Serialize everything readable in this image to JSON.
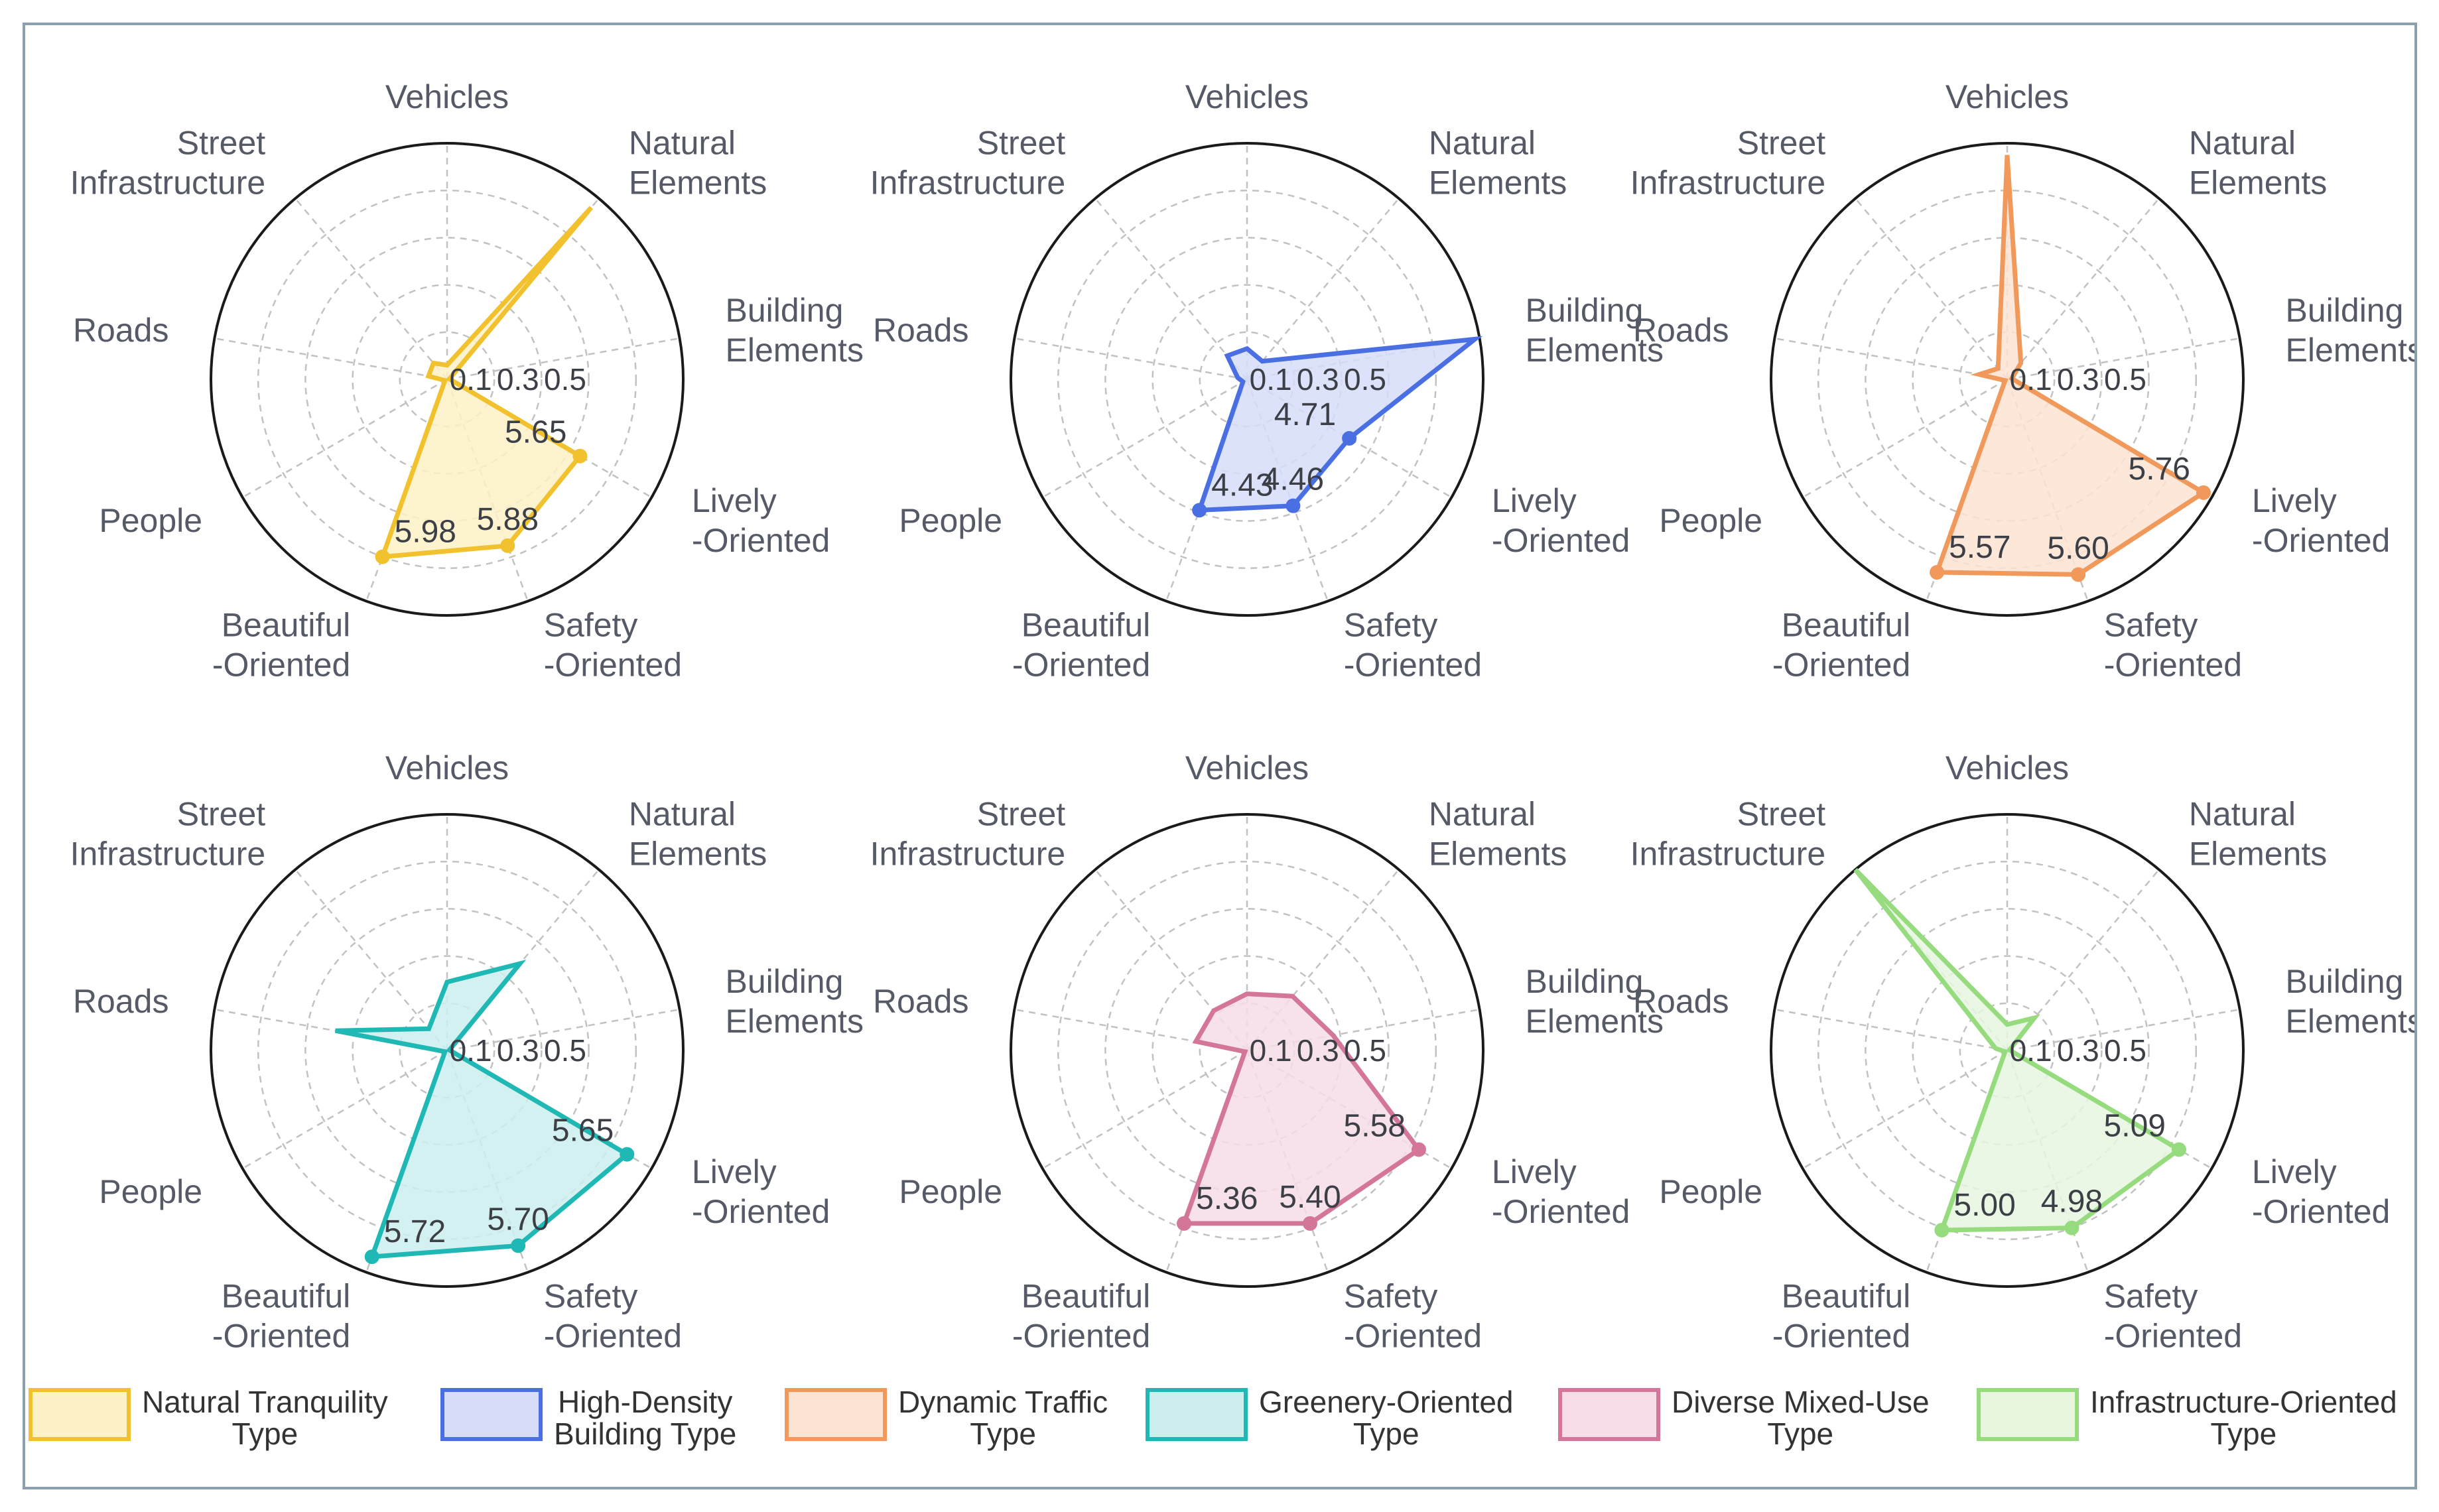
{
  "chart_data": {
    "type": "radar",
    "axes": [
      "Vehicles",
      "Natural Elements",
      "Building Elements",
      "Lively -Oriented",
      "Safety -Oriented",
      "Beautiful -Oriented",
      "People",
      "Roads",
      "Street Infrastructure"
    ],
    "axis_label_lines": [
      [
        "Vehicles"
      ],
      [
        "Natural",
        "Elements"
      ],
      [
        "Building",
        "Elements"
      ],
      [
        "Lively",
        "-Oriented"
      ],
      [
        "Safety",
        "-Oriented"
      ],
      [
        "Beautiful",
        "-Oriented"
      ],
      [
        "People"
      ],
      [
        "Roads"
      ],
      [
        "Street",
        "Infrastructure"
      ]
    ],
    "radial_tick_labels": [
      "0.1",
      "0.3",
      "0.5"
    ],
    "rings": 5,
    "grid": true,
    "legend_position": "bottom",
    "charts": [
      {
        "name": "Natural Tranquility Type",
        "legend_lines": [
          "Natural Tranquility",
          "Type"
        ],
        "color": "#f2c12e",
        "fill": "#fdf1c7",
        "values": [
          0.06,
          0.95,
          0.01,
          0.65,
          0.75,
          0.8,
          0.01,
          0.08,
          0.09
        ],
        "value_labels": [
          "",
          "",
          "",
          "5.65",
          "5.88",
          "5.98",
          "",
          "",
          ""
        ]
      },
      {
        "name": "High-Density Building Type",
        "legend_lines": [
          "High-Density",
          "Building Type"
        ],
        "color": "#4a6fe3",
        "fill": "#d5ddf8",
        "values": [
          0.13,
          0.1,
          0.98,
          0.5,
          0.57,
          0.59,
          0.02,
          0.04,
          0.13
        ],
        "value_labels": [
          "",
          "",
          "",
          "4.71",
          "4.46",
          "4.43",
          "",
          "",
          ""
        ]
      },
      {
        "name": "Dynamic Traffic Type",
        "legend_lines": [
          "Dynamic Traffic",
          "Type"
        ],
        "color": "#f0995a",
        "fill": "#fde3d2",
        "values": [
          0.95,
          0.09,
          0.02,
          0.96,
          0.88,
          0.87,
          0.01,
          0.12,
          0.06
        ],
        "value_labels": [
          "",
          "",
          "",
          "5.76",
          "5.60",
          "5.57",
          "",
          "",
          ""
        ]
      },
      {
        "name": "Greenery-Oriented Type",
        "legend_lines": [
          "Greenery-Oriented",
          "Type"
        ],
        "color": "#1fb8b4",
        "fill": "#ccefee",
        "values": [
          0.29,
          0.48,
          0.01,
          0.88,
          0.88,
          0.93,
          0.01,
          0.48,
          0.12
        ],
        "value_labels": [
          "",
          "",
          "",
          "5.65",
          "5.70",
          "5.72",
          "",
          "",
          ""
        ]
      },
      {
        "name": "Diverse Mixed-Use Type",
        "legend_lines": [
          "Diverse Mixed-Use",
          "Type"
        ],
        "color": "#d4759a",
        "fill": "#f6dde7",
        "values": [
          0.24,
          0.3,
          0.37,
          0.84,
          0.78,
          0.78,
          0.01,
          0.22,
          0.22
        ],
        "value_labels": [
          "",
          "",
          "",
          "5.58",
          "5.40",
          "5.36",
          "",
          "",
          ""
        ]
      },
      {
        "name": "Infrastructure-Oriented Type",
        "legend_lines": [
          "Infrastructure-Oriented",
          "Type"
        ],
        "color": "#96dc7e",
        "fill": "#e8f6e0",
        "values": [
          0.11,
          0.18,
          0.01,
          0.84,
          0.8,
          0.81,
          0.01,
          0.05,
          1.0
        ],
        "value_labels": [
          "",
          "",
          "",
          "5.09",
          "4.98",
          "5.00",
          "",
          "",
          ""
        ]
      }
    ]
  }
}
